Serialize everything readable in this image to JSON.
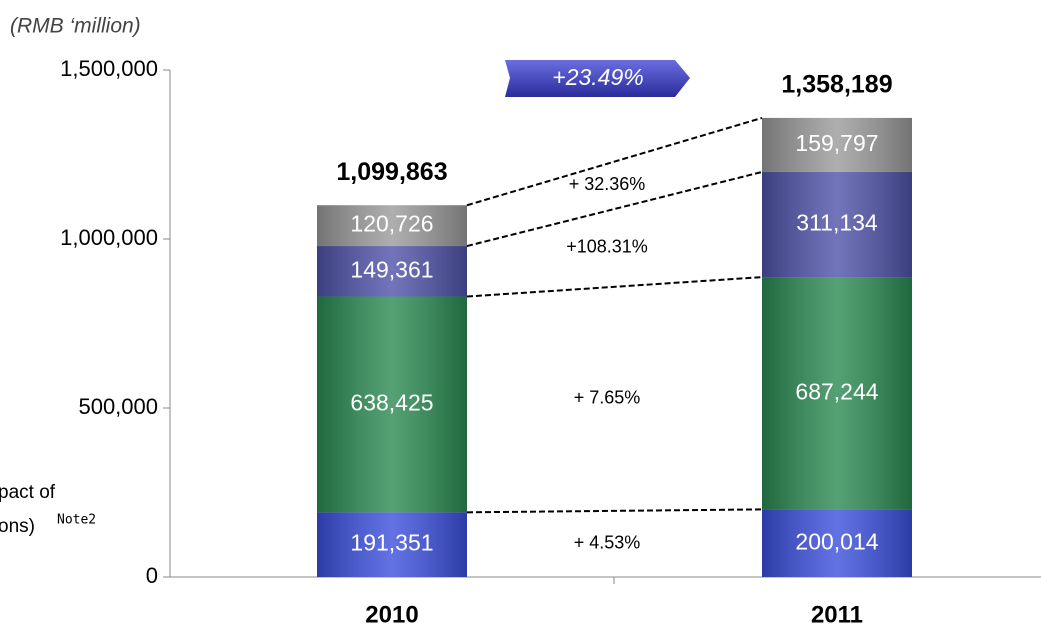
{
  "chart_data": {
    "type": "bar",
    "stacked": true,
    "unit_label": "(RMB ‘million)",
    "categories": [
      "2010",
      "2011"
    ],
    "series": [
      {
        "color": "#3b4fdc",
        "values": [
          191351,
          200014
        ],
        "value_labels": [
          "191,351",
          "200,014"
        ]
      },
      {
        "color": "#2a8a52",
        "values": [
          638425,
          687244
        ],
        "value_labels": [
          "638,425",
          "687,244"
        ]
      },
      {
        "color": "#4e52a8",
        "values": [
          149361,
          311134
        ],
        "value_labels": [
          "149,361",
          "311,134"
        ]
      },
      {
        "color": "#9a9a9a",
        "values": [
          120726,
          159797
        ],
        "value_labels": [
          "120,726",
          "159,797"
        ]
      }
    ],
    "totals": [
      1099863,
      1358189
    ],
    "total_labels": [
      "1,099,863",
      "1,358,189"
    ],
    "growth_labels": [
      "+ 4.53%",
      "+ 7.65%",
      "+108.31%",
      "+ 32.36%"
    ],
    "total_growth": "+23.49%",
    "annotations": [
      "pact of",
      "ons)",
      "Note2"
    ],
    "ylim": [
      0,
      1500000
    ],
    "yticks": [
      0,
      {
        "value": 500000,
        "label": "500,000"
      },
      {
        "value": 1000000,
        "label": "1,000,000"
      },
      {
        "value": 1500000,
        "label": "1,500,000"
      }
    ]
  }
}
